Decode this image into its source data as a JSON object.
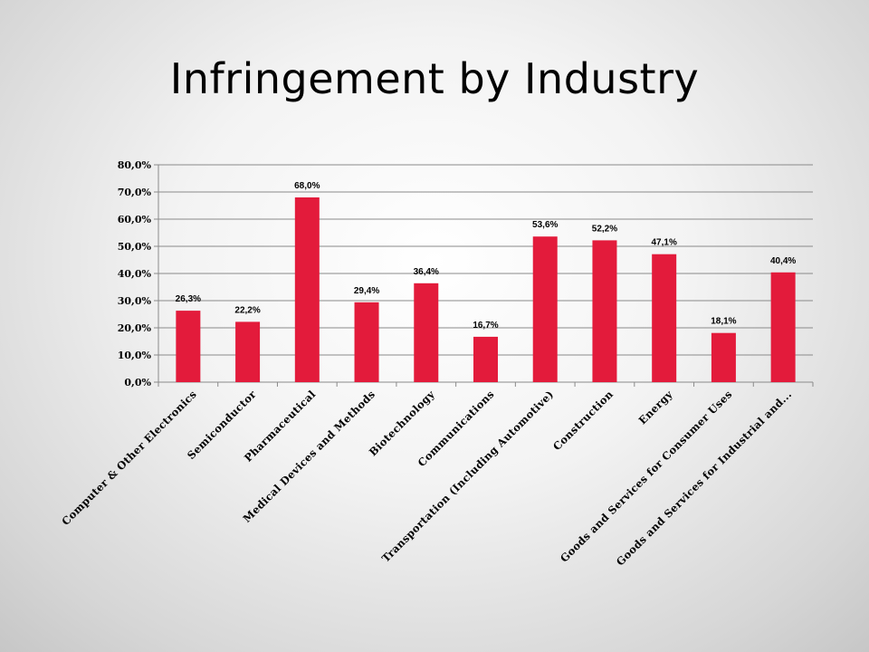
{
  "slide": {
    "title": "Infringement by Industry"
  },
  "chart_data": {
    "type": "bar",
    "categories": [
      "Computer & Other Electronics",
      "Semiconductor",
      "Pharmaceutical",
      "Medical Devices and Methods",
      "Biotechnology",
      "Communications",
      "Transportation (Including Automotive)",
      "Construction",
      "Energy",
      "Goods and Services for Consumer Uses",
      "Goods and Services for Industrial and..."
    ],
    "values": [
      26.3,
      22.2,
      68.0,
      29.4,
      36.4,
      16.7,
      53.6,
      52.2,
      47.1,
      18.1,
      40.4
    ],
    "data_labels": [
      "26,3%",
      "22,2%",
      "68,0%",
      "29,4%",
      "36,4%",
      "16,7%",
      "53,6%",
      "52,2%",
      "47,1%",
      "18,1%",
      "40,4%"
    ],
    "y_ticks": [
      "0,0%",
      "10,0%",
      "20,0%",
      "30,0%",
      "40,0%",
      "50,0%",
      "60,0%",
      "70,0%",
      "80,0%"
    ],
    "ylim": [
      0,
      80
    ],
    "grid": true,
    "bar_color": "#e31b3b",
    "gridline_color": "#8a8a8a"
  }
}
